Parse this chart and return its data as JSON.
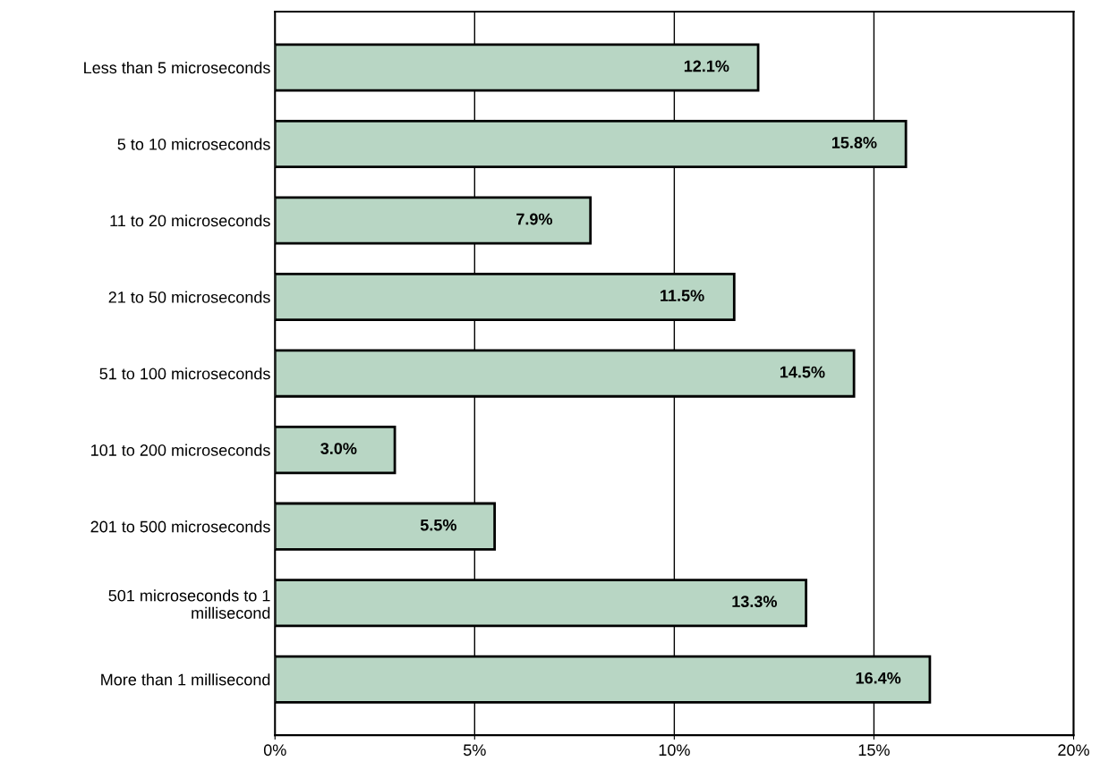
{
  "chart_data": {
    "type": "bar",
    "orientation": "horizontal",
    "categories": [
      "Less than 5 microseconds",
      "5 to 10 microseconds",
      "11 to 20 microseconds",
      "21 to 50 microseconds",
      "51 to 100 microseconds",
      "101 to 200 microseconds",
      "201 to 500 microseconds",
      "501 microseconds to 1\nmillisecond",
      "More than 1 millisecond"
    ],
    "values": [
      12.1,
      15.8,
      7.9,
      11.5,
      14.5,
      3.0,
      5.5,
      13.3,
      16.4
    ],
    "value_labels": [
      "12.1%",
      "15.8%",
      "7.9%",
      "11.5%",
      "14.5%",
      "3.0%",
      "5.5%",
      "13.3%",
      "16.4%"
    ],
    "color": "#b8d6c4",
    "xlim": [
      0,
      20
    ],
    "xticks": [
      {
        "value": 0,
        "label": "0%"
      },
      {
        "value": 5,
        "label": "5%"
      },
      {
        "value": 10,
        "label": "10%"
      },
      {
        "value": 15,
        "label": "15%"
      },
      {
        "value": 20,
        "label": "20%"
      }
    ],
    "grid": "x",
    "legend": false
  }
}
